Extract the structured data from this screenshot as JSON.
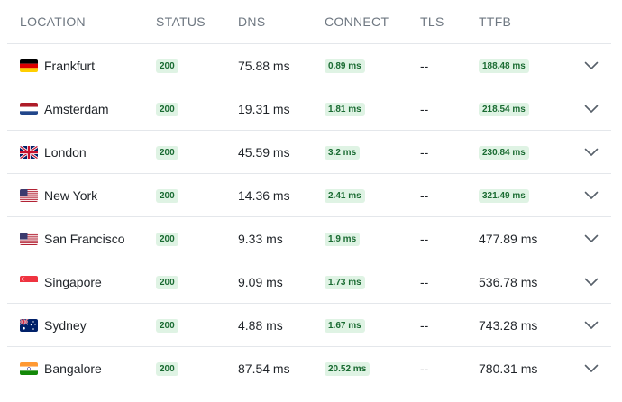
{
  "columns": {
    "location": "LOCATION",
    "status": "STATUS",
    "dns": "DNS",
    "connect": "CONNECT",
    "tls": "TLS",
    "ttfb": "TTFB"
  },
  "colors": {
    "badge_bg": "#dff3e4",
    "badge_text": "#1a6b32",
    "header_text": "#6e7781",
    "divider": "#e4e7eb"
  },
  "rows": [
    {
      "flag": "germany-flag",
      "location": "Frankfurt",
      "status": "200",
      "dns": "75.88 ms",
      "connect": "0.89 ms",
      "tls": "--",
      "ttfb": "188.48 ms",
      "ttfb_badge": true
    },
    {
      "flag": "netherlands-flag",
      "location": "Amsterdam",
      "status": "200",
      "dns": "19.31 ms",
      "connect": "1.81 ms",
      "tls": "--",
      "ttfb": "218.54 ms",
      "ttfb_badge": true
    },
    {
      "flag": "uk-flag",
      "location": "London",
      "status": "200",
      "dns": "45.59 ms",
      "connect": "3.2 ms",
      "tls": "--",
      "ttfb": "230.84 ms",
      "ttfb_badge": true
    },
    {
      "flag": "us-flag",
      "location": "New York",
      "status": "200",
      "dns": "14.36 ms",
      "connect": "2.41 ms",
      "tls": "--",
      "ttfb": "321.49 ms",
      "ttfb_badge": true
    },
    {
      "flag": "us-flag",
      "location": "San Francisco",
      "status": "200",
      "dns": "9.33 ms",
      "connect": "1.9 ms",
      "tls": "--",
      "ttfb": "477.89 ms",
      "ttfb_badge": false
    },
    {
      "flag": "singapore-flag",
      "location": "Singapore",
      "status": "200",
      "dns": "9.09 ms",
      "connect": "1.73 ms",
      "tls": "--",
      "ttfb": "536.78 ms",
      "ttfb_badge": false
    },
    {
      "flag": "australia-flag",
      "location": "Sydney",
      "status": "200",
      "dns": "4.88 ms",
      "connect": "1.67 ms",
      "tls": "--",
      "ttfb": "743.28 ms",
      "ttfb_badge": false
    },
    {
      "flag": "india-flag",
      "location": "Bangalore",
      "status": "200",
      "dns": "87.54 ms",
      "connect": "20.52 ms",
      "tls": "--",
      "ttfb": "780.31 ms",
      "ttfb_badge": false
    }
  ]
}
